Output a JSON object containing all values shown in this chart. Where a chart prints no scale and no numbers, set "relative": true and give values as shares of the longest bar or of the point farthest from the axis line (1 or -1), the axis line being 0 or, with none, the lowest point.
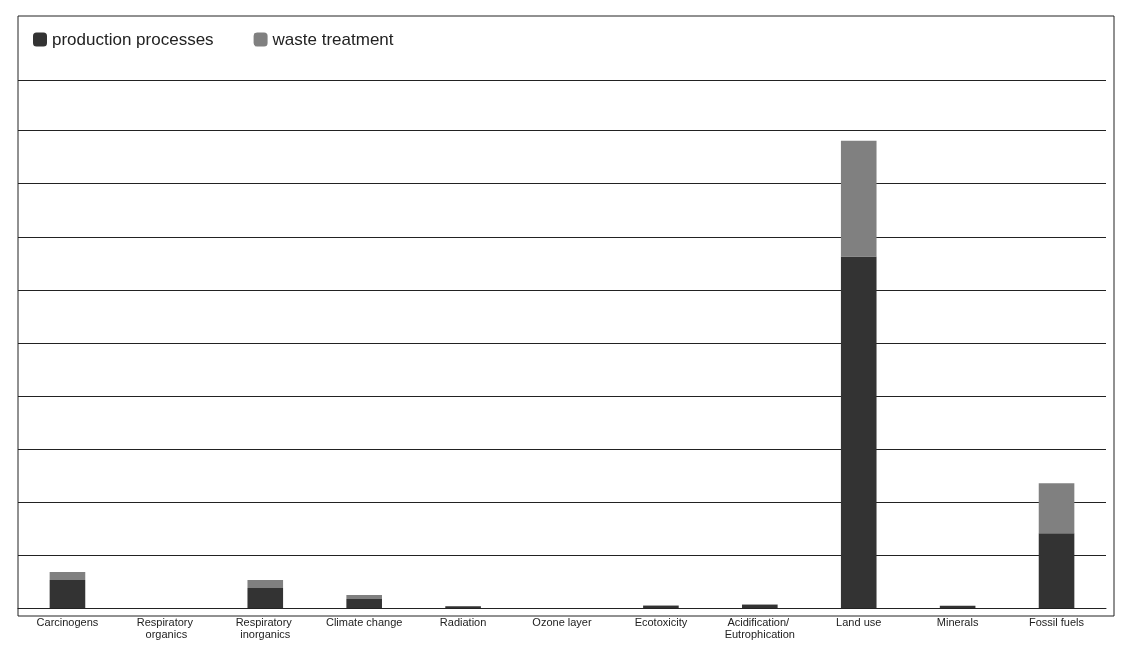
{
  "chart_data": {
    "type": "bar",
    "stacked": true,
    "relative": true,
    "grid": "y",
    "legend": "top left",
    "categories": [
      "Carcinogens",
      "Respiratory organics",
      "Respiratory inorganics",
      "Climate change",
      "Radiation",
      "Ozone layer",
      "Ecotoxicity",
      "Acidification/ Eutrophication",
      "Land use",
      "Minerals",
      "Fossil fuels"
    ],
    "series": [
      {
        "name": "production processes",
        "color": "#333333",
        "values": [
          0.06,
          null,
          0.043,
          0.019,
          0.004,
          0,
          0.005,
          0.007,
          0.752,
          0.005,
          0.16
        ]
      },
      {
        "name": "waste treatment",
        "color": "#808080",
        "values": [
          0.017,
          0,
          0.017,
          0.009,
          0,
          0,
          0.001,
          0.001,
          0.248,
          0,
          0.107
        ]
      }
    ]
  }
}
